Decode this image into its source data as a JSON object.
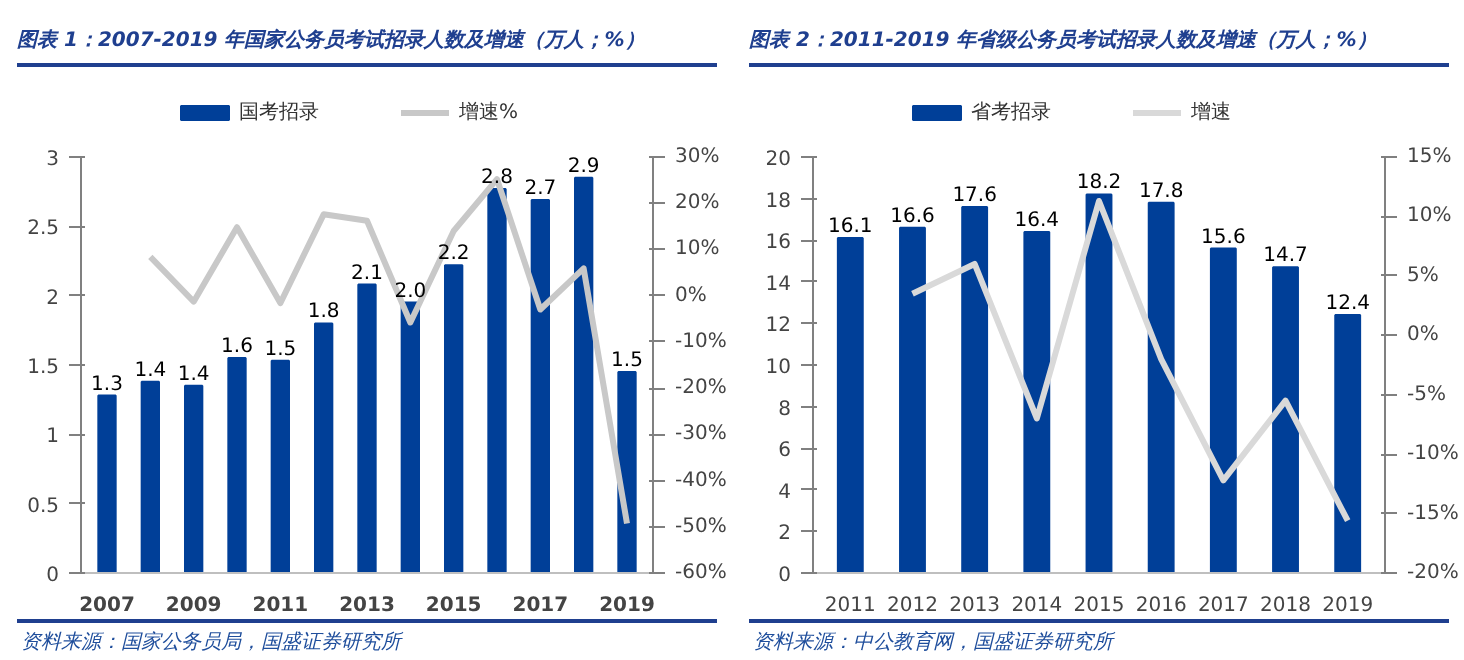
{
  "chart_data": [
    {
      "type": "bar",
      "title": "图表 1：2007-2019 年国家公务员考试招录人数及增速（万人；%）",
      "categories": [
        "2007",
        null,
        "2009",
        null,
        "2011",
        null,
        "2013",
        null,
        "2015",
        null,
        "2017",
        null,
        "2019"
      ],
      "series": [
        {
          "name": "国考招录",
          "color": "#003f98",
          "values": [
            1.28,
            1.38,
            1.35,
            1.55,
            1.53,
            1.8,
            2.08,
            1.95,
            2.22,
            2.77,
            2.69,
            2.85,
            1.45
          ],
          "value_labels": [
            "1.3",
            "1.4",
            "1.4",
            "1.6",
            "1.5",
            "1.8",
            "2.1",
            "2.0",
            "2.2",
            "2.8",
            "2.7",
            "2.9",
            "1.5"
          ]
        },
        {
          "name": "增速%",
          "type": "line",
          "axis": "y2",
          "color": "#c8c8c8",
          "values": [
            null,
            8.4,
            -1.3,
            14.8,
            -1.6,
            17.6,
            16.2,
            -5.8,
            14,
            25.2,
            -3,
            5.9,
            -49.3
          ]
        }
      ],
      "ylim": [
        0,
        3
      ],
      "yticks": [
        0,
        {
          "value": 0.5,
          "label": "0.5"
        },
        1,
        {
          "value": 1.5,
          "label": "1.5"
        },
        2,
        {
          "value": 2.5,
          "label": "2.5"
        },
        3
      ],
      "y2lim": [
        -60,
        30
      ],
      "y2ticks": [
        {
          "value": -60,
          "label": "-60%"
        },
        {
          "value": -50,
          "label": "-50%"
        },
        {
          "value": -40,
          "label": "-40%"
        },
        {
          "value": -30,
          "label": "-30%"
        },
        {
          "value": -20,
          "label": "-20%"
        },
        {
          "value": -10,
          "label": "-10%"
        },
        {
          "value": 0,
          "label": "0%"
        },
        {
          "value": 10,
          "label": "10%"
        },
        {
          "value": 20,
          "label": "20%"
        },
        {
          "value": 30,
          "label": "30%"
        }
      ],
      "grid": false,
      "legend": "top",
      "annotations": [
        "资料来源：国家公务员局，国盛证券研究所"
      ]
    },
    {
      "type": "bar",
      "title": "图表 2：2011-2019 年省级公务员考试招录人数及增速（万人；%）",
      "categories": [
        "2011",
        "2012",
        "2013",
        "2014",
        "2015",
        "2016",
        "2017",
        "2018",
        "2019"
      ],
      "series": [
        {
          "name": "省考招录",
          "color": "#003f98",
          "values": [
            16.1,
            16.6,
            17.6,
            16.4,
            18.2,
            17.8,
            15.6,
            14.7,
            12.4
          ],
          "value_labels": [
            "16.1",
            "16.6",
            "17.6",
            "16.4",
            "18.2",
            "17.8",
            "15.6",
            "14.7",
            "12.4"
          ]
        },
        {
          "name": "增速",
          "type": "line",
          "axis": "y2",
          "color": "#d9d9d9",
          "values": [
            null,
            3.5,
            6.0,
            -7.0,
            11.3,
            -2,
            -12.2,
            -5.5,
            -15.6
          ]
        }
      ],
      "ylim": [
        0,
        20
      ],
      "yticks": [
        0,
        2,
        4,
        6,
        8,
        10,
        12,
        14,
        16,
        18,
        20
      ],
      "y2lim": [
        -20,
        15
      ],
      "y2ticks": [
        {
          "value": -20,
          "label": "-20%"
        },
        {
          "value": -15,
          "label": "-15%"
        },
        {
          "value": -10,
          "label": "-10%"
        },
        {
          "value": -5,
          "label": "-5%"
        },
        {
          "value": 0,
          "label": "0%"
        },
        {
          "value": 5,
          "label": "5%"
        },
        {
          "value": 10,
          "label": "10%"
        },
        {
          "value": 15,
          "label": "15%"
        }
      ],
      "grid": false,
      "legend": "top",
      "annotations": [
        "资料来源：中公教育网，国盛证券研究所"
      ]
    }
  ]
}
